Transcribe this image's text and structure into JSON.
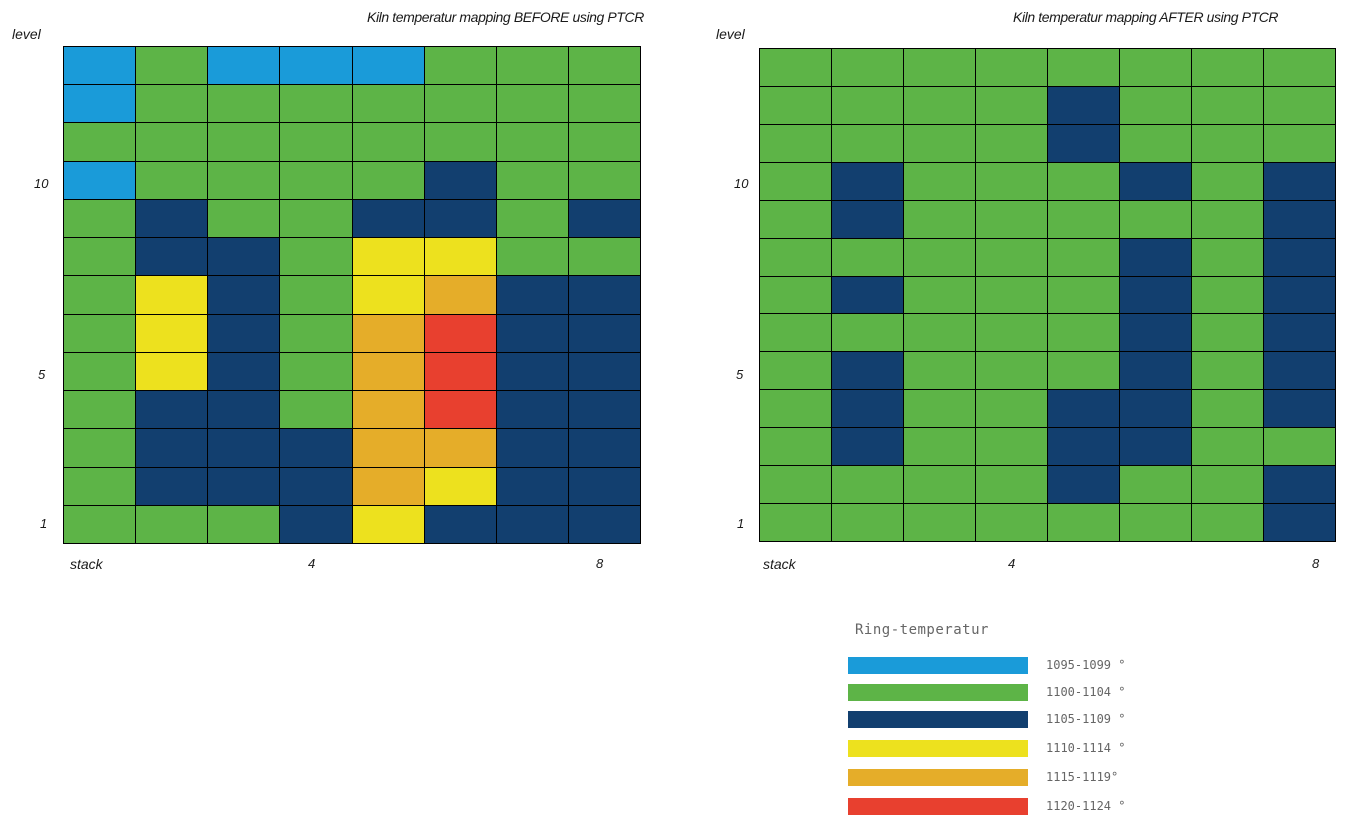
{
  "chart_data": [
    {
      "type": "heatmap",
      "title": "Kiln temperatur mapping BEFORE using PTCR",
      "xlabel": "stack",
      "ylabel": "level",
      "x_ticks": [
        "4",
        "8"
      ],
      "y_ticks": [
        "10",
        "5",
        "1"
      ],
      "columns": 8,
      "rows": 13,
      "cells_top_to_bottom": [
        [
          "1095-1099",
          "1100-1104",
          "1095-1099",
          "1095-1099",
          "1095-1099",
          "1100-1104",
          "1100-1104",
          "1100-1104"
        ],
        [
          "1095-1099",
          "1100-1104",
          "1100-1104",
          "1100-1104",
          "1100-1104",
          "1100-1104",
          "1100-1104",
          "1100-1104"
        ],
        [
          "1100-1104",
          "1100-1104",
          "1100-1104",
          "1100-1104",
          "1100-1104",
          "1100-1104",
          "1100-1104",
          "1100-1104"
        ],
        [
          "1095-1099",
          "1100-1104",
          "1100-1104",
          "1100-1104",
          "1100-1104",
          "1105-1109",
          "1100-1104",
          "1100-1104"
        ],
        [
          "1100-1104",
          "1105-1109",
          "1100-1104",
          "1100-1104",
          "1105-1109",
          "1105-1109",
          "1100-1104",
          "1105-1109"
        ],
        [
          "1100-1104",
          "1105-1109",
          "1105-1109",
          "1100-1104",
          "1110-1114",
          "1110-1114",
          "1100-1104",
          "1100-1104"
        ],
        [
          "1100-1104",
          "1110-1114",
          "1105-1109",
          "1100-1104",
          "1110-1114",
          "1115-1119",
          "1105-1109",
          "1105-1109"
        ],
        [
          "1100-1104",
          "1110-1114",
          "1105-1109",
          "1100-1104",
          "1115-1119",
          "1120-1124",
          "1105-1109",
          "1105-1109"
        ],
        [
          "1100-1104",
          "1110-1114",
          "1105-1109",
          "1100-1104",
          "1115-1119",
          "1120-1124",
          "1105-1109",
          "1105-1109"
        ],
        [
          "1100-1104",
          "1105-1109",
          "1105-1109",
          "1100-1104",
          "1115-1119",
          "1120-1124",
          "1105-1109",
          "1105-1109"
        ],
        [
          "1100-1104",
          "1105-1109",
          "1105-1109",
          "1105-1109",
          "1115-1119",
          "1115-1119",
          "1105-1109",
          "1105-1109"
        ],
        [
          "1100-1104",
          "1105-1109",
          "1105-1109",
          "1105-1109",
          "1115-1119",
          "1110-1114",
          "1105-1109",
          "1105-1109"
        ],
        [
          "1100-1104",
          "1100-1104",
          "1100-1104",
          "1105-1109",
          "1110-1114",
          "1105-1109",
          "1105-1109",
          "1105-1109"
        ]
      ]
    },
    {
      "type": "heatmap",
      "title": "Kiln temperatur mapping AFTER using PTCR",
      "xlabel": "stack",
      "ylabel": "level",
      "x_ticks": [
        "4",
        "8"
      ],
      "y_ticks": [
        "10",
        "5",
        "1"
      ],
      "columns": 8,
      "rows": 13,
      "cells_top_to_bottom": [
        [
          "1100-1104",
          "1100-1104",
          "1100-1104",
          "1100-1104",
          "1100-1104",
          "1100-1104",
          "1100-1104",
          "1100-1104"
        ],
        [
          "1100-1104",
          "1100-1104",
          "1100-1104",
          "1100-1104",
          "1105-1109",
          "1100-1104",
          "1100-1104",
          "1100-1104"
        ],
        [
          "1100-1104",
          "1100-1104",
          "1100-1104",
          "1100-1104",
          "1105-1109",
          "1100-1104",
          "1100-1104",
          "1100-1104"
        ],
        [
          "1100-1104",
          "1105-1109",
          "1100-1104",
          "1100-1104",
          "1100-1104",
          "1105-1109",
          "1100-1104",
          "1105-1109"
        ],
        [
          "1100-1104",
          "1105-1109",
          "1100-1104",
          "1100-1104",
          "1100-1104",
          "1100-1104",
          "1100-1104",
          "1105-1109"
        ],
        [
          "1100-1104",
          "1100-1104",
          "1100-1104",
          "1100-1104",
          "1100-1104",
          "1105-1109",
          "1100-1104",
          "1105-1109"
        ],
        [
          "1100-1104",
          "1105-1109",
          "1100-1104",
          "1100-1104",
          "1100-1104",
          "1105-1109",
          "1100-1104",
          "1105-1109"
        ],
        [
          "1100-1104",
          "1100-1104",
          "1100-1104",
          "1100-1104",
          "1100-1104",
          "1105-1109",
          "1100-1104",
          "1105-1109"
        ],
        [
          "1100-1104",
          "1105-1109",
          "1100-1104",
          "1100-1104",
          "1100-1104",
          "1105-1109",
          "1100-1104",
          "1105-1109"
        ],
        [
          "1100-1104",
          "1105-1109",
          "1100-1104",
          "1100-1104",
          "1105-1109",
          "1105-1109",
          "1100-1104",
          "1105-1109"
        ],
        [
          "1100-1104",
          "1105-1109",
          "1100-1104",
          "1100-1104",
          "1105-1109",
          "1105-1109",
          "1100-1104",
          "1100-1104"
        ],
        [
          "1100-1104",
          "1100-1104",
          "1100-1104",
          "1100-1104",
          "1105-1109",
          "1100-1104",
          "1100-1104",
          "1105-1109"
        ],
        [
          "1100-1104",
          "1100-1104",
          "1100-1104",
          "1100-1104",
          "1100-1104",
          "1100-1104",
          "1100-1104",
          "1105-1109"
        ]
      ]
    }
  ],
  "legend": {
    "title": "Ring-temperatur",
    "items": [
      {
        "key": "1095-1099",
        "label": "1095-1099 °",
        "color": "#1a9bd9"
      },
      {
        "key": "1100-1104",
        "label": "1100-1104 °",
        "color": "#5db447"
      },
      {
        "key": "1105-1109",
        "label": "1105-1109 °",
        "color": "#123f6f"
      },
      {
        "key": "1110-1114",
        "label": "1110-1114 °",
        "color": "#ede11e"
      },
      {
        "key": "1115-1119",
        "label": "1115-1119°",
        "color": "#e5ad29"
      },
      {
        "key": "1120-1124",
        "label": "1120-1124 °",
        "color": "#e8402f"
      }
    ]
  }
}
